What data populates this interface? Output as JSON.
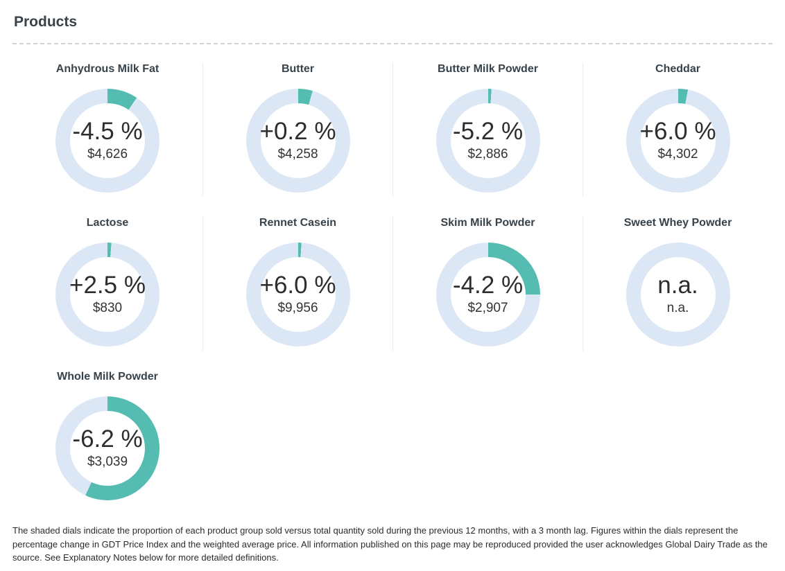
{
  "page": {
    "title": "Products"
  },
  "colors": {
    "arc": "#55bcb2",
    "ring": "#dce7f5",
    "title_text": "#37424a",
    "value_text": "#2d2d2d"
  },
  "products": [
    {
      "name": "Anhydrous Milk Fat",
      "change": "-4.5 %",
      "price": "$4,626",
      "sold_fraction_pct": 9.5
    },
    {
      "name": "Butter",
      "change": "+0.2 %",
      "price": "$4,258",
      "sold_fraction_pct": 4.5
    },
    {
      "name": "Butter Milk Powder",
      "change": "-5.2 %",
      "price": "$2,886",
      "sold_fraction_pct": 1
    },
    {
      "name": "Cheddar",
      "change": "+6.0 %",
      "price": "$4,302",
      "sold_fraction_pct": 3
    },
    {
      "name": "Lactose",
      "change": "+2.5 %",
      "price": "$830",
      "sold_fraction_pct": 1.2
    },
    {
      "name": "Rennet Casein",
      "change": "+6.0 %",
      "price": "$9,956",
      "sold_fraction_pct": 1
    },
    {
      "name": "Skim Milk Powder",
      "change": "-4.2 %",
      "price": "$2,907",
      "sold_fraction_pct": 25
    },
    {
      "name": "Sweet Whey Powder",
      "change": "n.a.",
      "price": "n.a.",
      "sold_fraction_pct": 0
    },
    {
      "name": "Whole Milk Powder",
      "change": "-6.2 %",
      "price": "$3,039",
      "sold_fraction_pct": 57
    }
  ],
  "chart_data": [
    {
      "type": "pie",
      "title": "Anhydrous Milk Fat",
      "labels": [
        "sold",
        "remainder"
      ],
      "values": [
        9.5,
        90.5
      ],
      "annotations": [
        "-4.5 %",
        "$4,626"
      ]
    },
    {
      "type": "pie",
      "title": "Butter",
      "labels": [
        "sold",
        "remainder"
      ],
      "values": [
        4.5,
        95.5
      ],
      "annotations": [
        "+0.2 %",
        "$4,258"
      ]
    },
    {
      "type": "pie",
      "title": "Butter Milk Powder",
      "labels": [
        "sold",
        "remainder"
      ],
      "values": [
        1,
        99
      ],
      "annotations": [
        "-5.2 %",
        "$2,886"
      ]
    },
    {
      "type": "pie",
      "title": "Cheddar",
      "labels": [
        "sold",
        "remainder"
      ],
      "values": [
        3,
        97
      ],
      "annotations": [
        "+6.0 %",
        "$4,302"
      ]
    },
    {
      "type": "pie",
      "title": "Lactose",
      "labels": [
        "sold",
        "remainder"
      ],
      "values": [
        1.2,
        98.8
      ],
      "annotations": [
        "+2.5 %",
        "$830"
      ]
    },
    {
      "type": "pie",
      "title": "Rennet Casein",
      "labels": [
        "sold",
        "remainder"
      ],
      "values": [
        1,
        99
      ],
      "annotations": [
        "+6.0 %",
        "$9,956"
      ]
    },
    {
      "type": "pie",
      "title": "Skim Milk Powder",
      "labels": [
        "sold",
        "remainder"
      ],
      "values": [
        25,
        75
      ],
      "annotations": [
        "-4.2 %",
        "$2,907"
      ]
    },
    {
      "type": "pie",
      "title": "Sweet Whey Powder",
      "labels": [
        "sold",
        "remainder"
      ],
      "values": [
        0,
        100
      ],
      "annotations": [
        "n.a.",
        "n.a."
      ]
    },
    {
      "type": "pie",
      "title": "Whole Milk Powder",
      "labels": [
        "sold",
        "remainder"
      ],
      "values": [
        57,
        43
      ],
      "annotations": [
        "-6.2 %",
        "$3,039"
      ]
    }
  ],
  "footer": {
    "note": "The shaded dials indicate the proportion of each product group sold versus total quantity sold during the previous 12 months, with a 3 month lag. Figures within the dials represent the percentage change in GDT Price Index and the weighted average price. All information published on this page may be reproduced provided the user acknowledges Global Dairy Trade as the source. See Explanatory Notes below for more detailed definitions."
  }
}
